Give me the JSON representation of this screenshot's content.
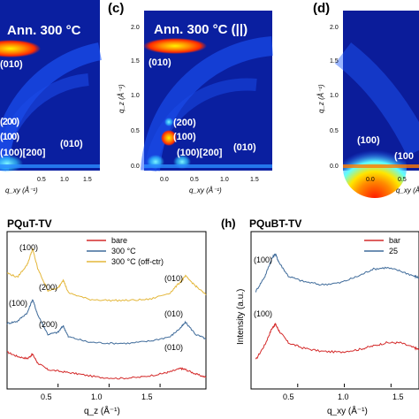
{
  "panels": {
    "b": {
      "title": "Ann. 300 °C",
      "ylabel": "",
      "xlabel": "q_xy (Å⁻¹)",
      "xticks": [
        "0.5",
        "1.0",
        "1.5"
      ],
      "peaks": [
        "(010)",
        "(200)",
        "(100)",
        "(100)[200]",
        "(010)"
      ]
    },
    "c": {
      "letter": "(c)",
      "title": "Ann. 300 °C (||)",
      "ylabel": "q_z (Å⁻¹)",
      "xlabel": "q_xy (Å⁻¹)",
      "yticks": [
        "0.0",
        "0.5",
        "1.0",
        "1.5",
        "2.0"
      ],
      "xticks": [
        "0.0",
        "0.5",
        "1.0",
        "1.5"
      ],
      "peaks": [
        "(010)",
        "(200)",
        "(100)",
        "(100)[200]",
        "(010)"
      ]
    },
    "d": {
      "letter": "(d)",
      "ylabel": "q_z (Å⁻¹)",
      "xlabel": "q_xy (Å⁻¹)",
      "yticks": [
        "0.0",
        "0.5",
        "1.0",
        "1.5",
        "2.0"
      ],
      "xticks": [
        "0.0",
        "0.5"
      ],
      "peaks": [
        "(100)",
        "(100"
      ]
    },
    "g": {
      "title": "PQuT-TV",
      "xlabel": "q_z (Å⁻¹)",
      "xticks": [
        "0.5",
        "1.0",
        "1.5"
      ],
      "legend": [
        "bare",
        "300 °C",
        "300 °C (off-ctr)"
      ],
      "peaks": [
        "(100)",
        "(200)",
        "(010)",
        "(100)",
        "(200)",
        "(010)",
        "(010)"
      ]
    },
    "h": {
      "letter": "(h)",
      "title": "PQuBT-TV",
      "ylabel": "Intensity (a.u.)",
      "xlabel": "q_xy (Å⁻¹)",
      "xticks": [
        "0.5",
        "1.0",
        "1.5"
      ],
      "legend": [
        "bar",
        "25"
      ],
      "peaks": [
        "(100)",
        "(100)"
      ]
    }
  },
  "chart_data": [
    {
      "type": "line",
      "title": "PQuT-TV",
      "xlabel": "q_z (Å⁻¹)",
      "ylabel": "",
      "xlim": [
        0.0,
        1.95
      ],
      "series": [
        {
          "name": "bare",
          "color": "#d42a2a",
          "x": [
            0.0,
            0.1,
            0.2,
            0.25,
            0.3,
            0.4,
            0.55,
            0.7,
            0.9,
            1.1,
            1.3,
            1.5,
            1.6,
            1.7,
            1.75,
            1.85,
            1.95
          ],
          "y": [
            1.6,
            1.4,
            1.3,
            1.5,
            1.1,
            0.8,
            0.7,
            0.6,
            0.45,
            0.4,
            0.45,
            0.6,
            0.7,
            0.85,
            0.8,
            0.6,
            0.45
          ]
        },
        {
          "name": "300 °C",
          "color": "#3f6b9a",
          "x": [
            0.0,
            0.1,
            0.2,
            0.25,
            0.3,
            0.4,
            0.5,
            0.55,
            0.6,
            0.8,
            1.0,
            1.2,
            1.4,
            1.6,
            1.7,
            1.75,
            1.85,
            1.95
          ],
          "y": [
            2.9,
            3.0,
            3.4,
            4.0,
            3.3,
            2.4,
            2.5,
            2.8,
            2.3,
            2.05,
            2.0,
            2.0,
            2.1,
            2.3,
            2.7,
            2.95,
            2.4,
            2.2
          ]
        },
        {
          "name": "300 °C (off-ctr)",
          "color": "#e4b73a",
          "x": [
            0.0,
            0.1,
            0.2,
            0.25,
            0.3,
            0.4,
            0.5,
            0.55,
            0.6,
            0.8,
            1.0,
            1.2,
            1.4,
            1.6,
            1.7,
            1.75,
            1.85,
            1.95
          ],
          "y": [
            5.2,
            5.0,
            5.6,
            6.3,
            5.4,
            4.4,
            4.5,
            4.9,
            4.3,
            4.0,
            3.95,
            3.95,
            4.0,
            4.3,
            4.8,
            5.05,
            4.6,
            4.2
          ]
        }
      ]
    },
    {
      "type": "line",
      "title": "PQuBT-TV",
      "xlabel": "q_xy (Å⁻¹)",
      "ylabel": "Intensity (a.u.)",
      "xlim": [
        0.0,
        1.8
      ],
      "series": [
        {
          "name": "bar",
          "color": "#d42a2a",
          "x": [
            0.05,
            0.15,
            0.22,
            0.26,
            0.3,
            0.4,
            0.55,
            0.75,
            0.95,
            1.15,
            1.3,
            1.45,
            1.6,
            1.75,
            1.8
          ],
          "y": [
            1.6,
            2.5,
            3.4,
            3.7,
            3.3,
            2.6,
            2.3,
            2.1,
            2.05,
            2.2,
            2.4,
            2.6,
            2.6,
            2.3,
            2.2
          ]
        },
        {
          "name": "25",
          "color": "#3f6b9a",
          "x": [
            0.05,
            0.15,
            0.22,
            0.26,
            0.3,
            0.4,
            0.55,
            0.75,
            0.95,
            1.15,
            1.3,
            1.45,
            1.6,
            1.75,
            1.8
          ],
          "y": [
            5.6,
            6.5,
            7.5,
            7.8,
            7.3,
            6.5,
            6.2,
            6.0,
            6.1,
            6.5,
            6.9,
            7.0,
            6.8,
            6.5,
            6.4
          ]
        }
      ]
    }
  ]
}
